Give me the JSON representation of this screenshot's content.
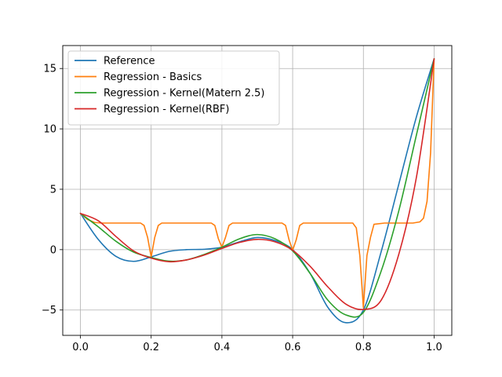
{
  "chart_data": {
    "type": "line",
    "title": "",
    "xlabel": "",
    "ylabel": "",
    "xlim": [
      -0.05,
      1.05
    ],
    "ylim": [
      -7.1,
      16.9
    ],
    "xticks": [
      0.0,
      0.2,
      0.4,
      0.6,
      0.8,
      1.0
    ],
    "xtick_labels": [
      "0.0",
      "0.2",
      "0.4",
      "0.6",
      "0.8",
      "1.0"
    ],
    "yticks": [
      -5,
      0,
      5,
      10,
      15
    ],
    "ytick_labels": [
      "−5",
      "0",
      "5",
      "10",
      "15"
    ],
    "grid": true,
    "legend": "top-left",
    "series": [
      {
        "name": "Reference",
        "color": "#1f77b4",
        "x": [
          0.0,
          0.05,
          0.1,
          0.15,
          0.2,
          0.25,
          0.3,
          0.35,
          0.4,
          0.45,
          0.5,
          0.55,
          0.6,
          0.65,
          0.7,
          0.75,
          0.8,
          0.85,
          0.9,
          0.95,
          1.0
        ],
        "y": [
          3.0,
          0.86,
          -0.55,
          -0.97,
          -0.6,
          -0.15,
          0.0,
          0.03,
          0.2,
          0.65,
          1.0,
          0.75,
          0.0,
          -2.0,
          -4.8,
          -6.05,
          -5.0,
          -0.2,
          5.4,
          11.0,
          15.8
        ]
      },
      {
        "name": "Regression - Basics",
        "color": "#ff7f0e",
        "x": [
          0.0,
          0.02,
          0.04,
          0.06,
          0.1,
          0.14,
          0.17,
          0.18,
          0.19,
          0.2,
          0.21,
          0.22,
          0.23,
          0.26,
          0.3,
          0.34,
          0.37,
          0.38,
          0.39,
          0.4,
          0.41,
          0.42,
          0.43,
          0.46,
          0.5,
          0.54,
          0.57,
          0.58,
          0.59,
          0.6,
          0.61,
          0.62,
          0.63,
          0.66,
          0.7,
          0.74,
          0.77,
          0.78,
          0.79,
          0.8,
          0.81,
          0.82,
          0.83,
          0.86,
          0.9,
          0.94,
          0.96,
          0.97,
          0.98,
          0.99,
          1.0
        ],
        "y": [
          3.0,
          2.5,
          2.25,
          2.2,
          2.2,
          2.2,
          2.2,
          2.0,
          1.0,
          -0.6,
          1.0,
          2.0,
          2.2,
          2.2,
          2.2,
          2.2,
          2.2,
          2.0,
          0.9,
          0.2,
          1.0,
          2.0,
          2.2,
          2.2,
          2.2,
          2.2,
          2.2,
          2.0,
          0.8,
          -0.05,
          0.8,
          2.0,
          2.2,
          2.2,
          2.2,
          2.2,
          2.2,
          1.8,
          -0.5,
          -4.8,
          -0.5,
          1.0,
          2.1,
          2.2,
          2.2,
          2.2,
          2.3,
          2.6,
          4.0,
          8.0,
          15.8
        ]
      },
      {
        "name": "Regression - Kernel(Matern 2.5)",
        "color": "#2ca02c",
        "x": [
          0.0,
          0.05,
          0.1,
          0.15,
          0.2,
          0.25,
          0.3,
          0.35,
          0.4,
          0.45,
          0.5,
          0.55,
          0.6,
          0.65,
          0.7,
          0.75,
          0.8,
          0.85,
          0.9,
          0.95,
          1.0
        ],
        "y": [
          3.0,
          1.9,
          0.7,
          -0.2,
          -0.65,
          -0.95,
          -0.85,
          -0.4,
          0.2,
          0.9,
          1.25,
          0.9,
          -0.1,
          -2.0,
          -4.2,
          -5.4,
          -5.2,
          -1.8,
          3.2,
          9.5,
          15.8
        ]
      },
      {
        "name": "Regression - Kernel(RBF)",
        "color": "#d62728",
        "x": [
          0.0,
          0.05,
          0.1,
          0.15,
          0.2,
          0.25,
          0.3,
          0.35,
          0.4,
          0.45,
          0.5,
          0.55,
          0.6,
          0.65,
          0.7,
          0.75,
          0.8,
          0.85,
          0.9,
          0.95,
          1.0
        ],
        "y": [
          3.0,
          2.4,
          1.1,
          -0.1,
          -0.7,
          -1.0,
          -0.85,
          -0.45,
          0.1,
          0.6,
          0.85,
          0.65,
          -0.05,
          -1.4,
          -3.1,
          -4.5,
          -4.95,
          -4.2,
          -0.4,
          6.0,
          15.8
        ]
      }
    ]
  }
}
